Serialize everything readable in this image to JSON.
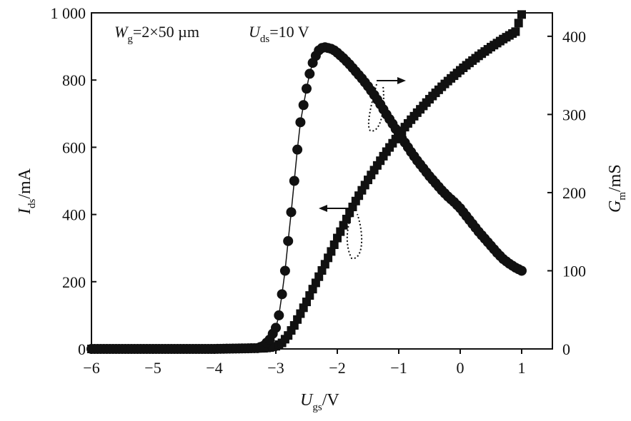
{
  "chart_data": {
    "type": "scatter",
    "annotations": {
      "gate_width": {
        "symbol": "W",
        "subscript": "g",
        "value": "=2×50 µm"
      },
      "drain_voltage": {
        "symbol": "U",
        "subscript": "ds",
        "value": "=10 V"
      }
    },
    "x_axis": {
      "symbol": "U",
      "subscript": "gs",
      "unit": "/V",
      "range": [
        -6.0,
        1.5
      ],
      "ticks": [
        -6,
        -5,
        -4,
        -3,
        -2,
        -1,
        0,
        1
      ],
      "tick_labels": [
        "−6",
        "−5",
        "−4",
        "−3",
        "−2",
        "−1",
        "0",
        "1"
      ]
    },
    "y_axis_left": {
      "symbol": "I",
      "subscript": "ds",
      "unit": "/mA",
      "range": [
        0,
        1000
      ],
      "ticks": [
        0,
        200,
        400,
        600,
        800,
        1000
      ],
      "tick_labels": [
        "0",
        "200",
        "400",
        "600",
        "800",
        "1 000"
      ]
    },
    "y_axis_right": {
      "symbol": "G",
      "subscript": "m",
      "unit": "/mS",
      "range": [
        0,
        430
      ],
      "ticks": [
        0,
        100,
        200,
        300,
        400
      ],
      "tick_labels": [
        "0",
        "100",
        "200",
        "300",
        "400"
      ]
    },
    "series": [
      {
        "axis": "left",
        "marker": "square",
        "points": [
          [
            -6.0,
            0
          ],
          [
            -5.0,
            0
          ],
          [
            -4.0,
            0
          ],
          [
            -3.2,
            2
          ],
          [
            -3.1,
            4
          ],
          [
            -3.0,
            8
          ],
          [
            -2.9,
            18
          ],
          [
            -2.8,
            40
          ],
          [
            -2.7,
            70
          ],
          [
            -2.6,
            105
          ],
          [
            -2.5,
            140
          ],
          [
            -2.4,
            178
          ],
          [
            -2.3,
            215
          ],
          [
            -2.2,
            252
          ],
          [
            -2.1,
            290
          ],
          [
            -2.0,
            330
          ],
          [
            -1.9,
            368
          ],
          [
            -1.8,
            405
          ],
          [
            -1.7,
            440
          ],
          [
            -1.6,
            472
          ],
          [
            -1.5,
            503
          ],
          [
            -1.4,
            532
          ],
          [
            -1.3,
            560
          ],
          [
            -1.2,
            587
          ],
          [
            -1.1,
            612
          ],
          [
            -1.0,
            637
          ],
          [
            -0.9,
            660
          ],
          [
            -0.8,
            682
          ],
          [
            -0.7,
            703
          ],
          [
            -0.6,
            723
          ],
          [
            -0.5,
            743
          ],
          [
            -0.4,
            762
          ],
          [
            -0.3,
            780
          ],
          [
            -0.2,
            797
          ],
          [
            -0.1,
            813
          ],
          [
            0.0,
            829
          ],
          [
            0.1,
            844
          ],
          [
            0.2,
            858
          ],
          [
            0.3,
            872
          ],
          [
            0.4,
            885
          ],
          [
            0.5,
            898
          ],
          [
            0.6,
            910
          ],
          [
            0.7,
            922
          ],
          [
            0.8,
            933
          ],
          [
            0.9,
            944
          ],
          [
            1.0,
            995
          ]
        ]
      },
      {
        "axis": "right",
        "marker": "circle",
        "points": [
          [
            -6.0,
            0
          ],
          [
            -5.0,
            0
          ],
          [
            -4.0,
            0
          ],
          [
            -3.3,
            1
          ],
          [
            -3.2,
            4
          ],
          [
            -3.1,
            12
          ],
          [
            -3.0,
            27
          ],
          [
            -2.95,
            43
          ],
          [
            -2.9,
            70
          ],
          [
            -2.85,
            100
          ],
          [
            -2.8,
            138
          ],
          [
            -2.75,
            175
          ],
          [
            -2.7,
            215
          ],
          [
            -2.65,
            255
          ],
          [
            -2.6,
            290
          ],
          [
            -2.55,
            312
          ],
          [
            -2.5,
            333
          ],
          [
            -2.45,
            352
          ],
          [
            -2.4,
            366
          ],
          [
            -2.35,
            375
          ],
          [
            -2.3,
            382
          ],
          [
            -2.25,
            385
          ],
          [
            -2.2,
            386
          ],
          [
            -2.15,
            385
          ],
          [
            -2.1,
            384
          ],
          [
            -2.05,
            382
          ],
          [
            -2.0,
            379
          ],
          [
            -1.9,
            372
          ],
          [
            -1.8,
            364
          ],
          [
            -1.7,
            355
          ],
          [
            -1.6,
            346
          ],
          [
            -1.5,
            336
          ],
          [
            -1.4,
            325
          ],
          [
            -1.3,
            313
          ],
          [
            -1.2,
            300
          ],
          [
            -1.1,
            288
          ],
          [
            -1.0,
            275
          ],
          [
            -0.9,
            264
          ],
          [
            -0.8,
            252
          ],
          [
            -0.7,
            241
          ],
          [
            -0.6,
            231
          ],
          [
            -0.5,
            221
          ],
          [
            -0.4,
            212
          ],
          [
            -0.3,
            203
          ],
          [
            -0.2,
            195
          ],
          [
            -0.1,
            188
          ],
          [
            0.0,
            180
          ],
          [
            0.1,
            170
          ],
          [
            0.2,
            160
          ],
          [
            0.3,
            150
          ],
          [
            0.4,
            141
          ],
          [
            0.5,
            132
          ],
          [
            0.6,
            123
          ],
          [
            0.7,
            115
          ],
          [
            0.8,
            109
          ],
          [
            0.9,
            104
          ],
          [
            1.0,
            100
          ]
        ]
      }
    ]
  }
}
